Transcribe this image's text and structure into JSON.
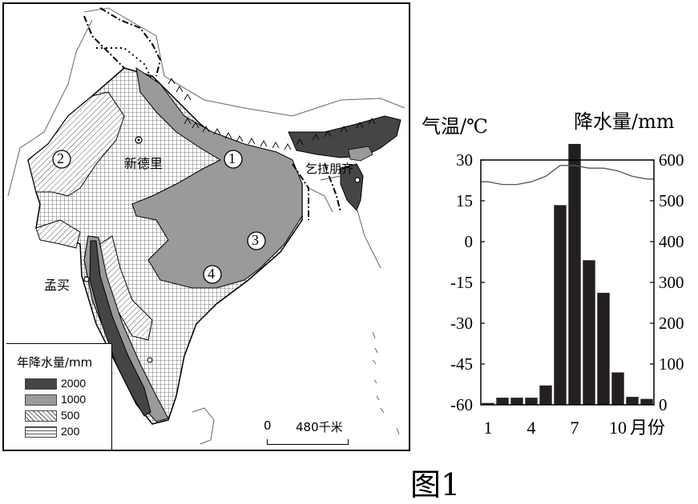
{
  "map": {
    "legend": {
      "title": "年降水量/mm",
      "items": [
        {
          "label": "2000",
          "color": "#454545"
        },
        {
          "label": "1000",
          "color": "#9a9a9a"
        },
        {
          "label": "500",
          "color": "hatch-diagonal"
        },
        {
          "label": "200",
          "color": "hatch-horizontal"
        }
      ]
    },
    "labels": {
      "new_delhi": "新德里",
      "mumbai": "孟买",
      "cherrapunji": "乞拉朋齐"
    },
    "markers": [
      "1",
      "2",
      "3",
      "4"
    ],
    "scale": {
      "zero": "0",
      "length": "480千米"
    }
  },
  "chart_data": {
    "type": "bar",
    "categories": [
      "1",
      "2",
      "3",
      "4",
      "5",
      "6",
      "7",
      "8",
      "9",
      "10",
      "11",
      "12"
    ],
    "series": [
      {
        "kind": "bar",
        "values": [
          5,
          18,
          18,
          18,
          48,
          490,
          640,
          355,
          275,
          80,
          20,
          15
        ]
      },
      {
        "kind": "line",
        "values": [
          22,
          21,
          21,
          22,
          24,
          28,
          28,
          27,
          27,
          26,
          24,
          23
        ]
      }
    ],
    "left_axis": {
      "label": "气温/℃",
      "ticks": [
        "30",
        "15",
        "0",
        "-15",
        "-30",
        "-45",
        "-60"
      ],
      "ylim": [
        -60,
        30
      ]
    },
    "right_axis": {
      "label": "降水量/mm",
      "ticks": [
        "600",
        "500",
        "400",
        "300",
        "200",
        "100",
        "0"
      ],
      "ylim": [
        0,
        600
      ]
    },
    "x_ticks": [
      "1",
      "4",
      "7",
      "10"
    ],
    "x_unit": "月份",
    "grid": false
  },
  "caption": "图1"
}
